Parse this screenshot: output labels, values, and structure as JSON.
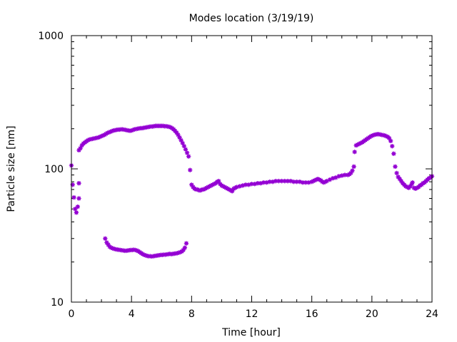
{
  "chart_data": {
    "type": "scatter",
    "title": "Modes location (3/19/19)",
    "xlabel": "Time [hour]",
    "ylabel": "Particle size [nm]",
    "xlim": [
      0,
      24
    ],
    "ylim": [
      10,
      1000
    ],
    "yscale": "log",
    "grid": false,
    "legend": "none",
    "marker_color": "#9400d3",
    "xticks": [
      "0",
      "4",
      "8",
      "12",
      "16",
      "20",
      "24"
    ],
    "yticks": [
      "10",
      "100",
      "1000"
    ],
    "series": [
      {
        "points": [
          [
            0.0,
            106
          ],
          [
            0.08,
            76
          ],
          [
            0.17,
            61
          ],
          [
            0.25,
            50
          ],
          [
            0.33,
            47
          ],
          [
            0.42,
            52
          ],
          [
            0.5,
            60
          ],
          [
            0.5,
            78
          ],
          [
            0.5,
            138
          ],
          [
            0.6,
            143
          ],
          [
            0.7,
            150
          ],
          [
            0.8,
            155
          ],
          [
            0.9,
            158
          ],
          [
            1.0,
            161
          ],
          [
            1.1,
            164
          ],
          [
            1.2,
            166
          ],
          [
            1.3,
            167
          ],
          [
            1.4,
            168
          ],
          [
            1.5,
            169
          ],
          [
            1.6,
            170
          ],
          [
            1.7,
            171
          ],
          [
            1.8,
            172
          ],
          [
            1.9,
            174
          ],
          [
            2.0,
            176
          ],
          [
            2.1,
            178
          ],
          [
            2.2,
            180
          ],
          [
            2.3,
            183
          ],
          [
            2.4,
            186
          ],
          [
            2.5,
            188
          ],
          [
            2.6,
            190
          ],
          [
            2.7,
            192
          ],
          [
            2.8,
            194
          ],
          [
            2.9,
            195
          ],
          [
            3.0,
            196
          ],
          [
            3.1,
            197
          ],
          [
            3.2,
            197
          ],
          [
            3.3,
            198
          ],
          [
            3.4,
            198
          ],
          [
            3.5,
            197
          ],
          [
            3.6,
            196
          ],
          [
            3.7,
            195
          ],
          [
            3.8,
            194
          ],
          [
            3.9,
            193
          ],
          [
            4.0,
            194
          ],
          [
            4.1,
            196
          ],
          [
            4.2,
            198
          ],
          [
            4.3,
            199
          ],
          [
            4.4,
            200
          ],
          [
            4.5,
            201
          ],
          [
            4.6,
            202
          ],
          [
            4.7,
            202
          ],
          [
            4.8,
            203
          ],
          [
            4.9,
            204
          ],
          [
            5.0,
            205
          ],
          [
            5.1,
            206
          ],
          [
            5.2,
            207
          ],
          [
            5.3,
            208
          ],
          [
            5.4,
            208
          ],
          [
            5.5,
            209
          ],
          [
            5.6,
            210
          ],
          [
            5.7,
            210
          ],
          [
            5.8,
            210
          ],
          [
            5.9,
            210
          ],
          [
            6.0,
            210
          ],
          [
            6.1,
            210
          ],
          [
            6.2,
            209
          ],
          [
            6.3,
            209
          ],
          [
            6.4,
            208
          ],
          [
            6.5,
            207
          ],
          [
            6.6,
            205
          ],
          [
            6.7,
            202
          ],
          [
            6.8,
            198
          ],
          [
            6.9,
            193
          ],
          [
            7.0,
            187
          ],
          [
            7.1,
            180
          ],
          [
            7.2,
            172
          ],
          [
            7.3,
            164
          ],
          [
            7.4,
            156
          ],
          [
            7.5,
            148
          ],
          [
            7.6,
            140
          ],
          [
            7.7,
            132
          ],
          [
            7.8,
            124
          ],
          [
            7.9,
            98
          ],
          [
            8.0,
            76
          ],
          [
            8.1,
            73
          ],
          [
            8.2,
            71
          ],
          [
            8.3,
            70
          ],
          [
            8.4,
            70
          ],
          [
            8.5,
            69
          ],
          [
            8.6,
            69
          ],
          [
            8.7,
            70
          ],
          [
            8.8,
            70
          ],
          [
            8.9,
            71
          ],
          [
            9.0,
            72
          ],
          [
            9.1,
            73
          ],
          [
            9.2,
            74
          ],
          [
            9.3,
            75
          ],
          [
            9.4,
            76
          ],
          [
            9.5,
            77
          ],
          [
            9.6,
            78
          ],
          [
            9.7,
            80
          ],
          [
            9.8,
            81
          ],
          [
            9.9,
            77
          ],
          [
            10.0,
            75
          ],
          [
            10.1,
            74
          ],
          [
            10.2,
            73
          ],
          [
            10.3,
            72
          ],
          [
            10.4,
            71
          ],
          [
            10.5,
            70
          ],
          [
            10.6,
            69
          ],
          [
            10.7,
            68
          ],
          [
            10.8,
            71
          ],
          [
            10.9,
            72
          ],
          [
            11.0,
            73
          ],
          [
            11.2,
            74
          ],
          [
            11.4,
            75
          ],
          [
            11.6,
            76
          ],
          [
            11.8,
            76
          ],
          [
            12.0,
            77
          ],
          [
            12.2,
            77
          ],
          [
            12.4,
            78
          ],
          [
            12.6,
            78
          ],
          [
            12.8,
            79
          ],
          [
            13.0,
            79
          ],
          [
            13.2,
            80
          ],
          [
            13.4,
            80
          ],
          [
            13.6,
            81
          ],
          [
            13.8,
            81
          ],
          [
            14.0,
            81
          ],
          [
            14.2,
            81
          ],
          [
            14.4,
            81
          ],
          [
            14.6,
            81
          ],
          [
            14.8,
            80
          ],
          [
            15.0,
            80
          ],
          [
            15.2,
            80
          ],
          [
            15.4,
            79
          ],
          [
            15.6,
            79
          ],
          [
            15.8,
            79
          ],
          [
            16.0,
            80
          ],
          [
            16.1,
            81
          ],
          [
            16.2,
            82
          ],
          [
            16.3,
            83
          ],
          [
            16.4,
            84
          ],
          [
            16.5,
            83
          ],
          [
            16.6,
            82
          ],
          [
            16.7,
            80
          ],
          [
            16.8,
            79
          ],
          [
            16.9,
            80
          ],
          [
            17.0,
            81
          ],
          [
            17.2,
            83
          ],
          [
            17.4,
            85
          ],
          [
            17.6,
            86
          ],
          [
            17.8,
            88
          ],
          [
            18.0,
            89
          ],
          [
            18.2,
            90
          ],
          [
            18.4,
            90
          ],
          [
            18.5,
            91
          ],
          [
            18.6,
            93
          ],
          [
            18.7,
            97
          ],
          [
            18.8,
            104
          ],
          [
            18.85,
            134
          ],
          [
            18.95,
            150
          ],
          [
            19.05,
            152
          ],
          [
            19.15,
            154
          ],
          [
            19.25,
            156
          ],
          [
            19.35,
            158
          ],
          [
            19.45,
            161
          ],
          [
            19.55,
            164
          ],
          [
            19.65,
            167
          ],
          [
            19.75,
            170
          ],
          [
            19.85,
            173
          ],
          [
            19.95,
            176
          ],
          [
            20.05,
            178
          ],
          [
            20.15,
            180
          ],
          [
            20.25,
            181
          ],
          [
            20.35,
            182
          ],
          [
            20.45,
            182
          ],
          [
            20.55,
            181
          ],
          [
            20.65,
            180
          ],
          [
            20.75,
            179
          ],
          [
            20.85,
            178
          ],
          [
            20.95,
            176
          ],
          [
            21.05,
            174
          ],
          [
            21.15,
            170
          ],
          [
            21.25,
            162
          ],
          [
            21.35,
            148
          ],
          [
            21.45,
            130
          ],
          [
            21.55,
            104
          ],
          [
            21.65,
            93
          ],
          [
            21.75,
            87
          ],
          [
            21.85,
            84
          ],
          [
            21.95,
            81
          ],
          [
            22.05,
            78
          ],
          [
            22.15,
            76
          ],
          [
            22.25,
            74
          ],
          [
            22.35,
            73
          ],
          [
            22.45,
            72
          ],
          [
            22.55,
            74
          ],
          [
            22.65,
            77
          ],
          [
            22.7,
            79
          ],
          [
            22.8,
            72
          ],
          [
            22.9,
            71
          ],
          [
            23.0,
            72
          ],
          [
            23.1,
            73
          ],
          [
            23.2,
            75
          ],
          [
            23.3,
            76
          ],
          [
            23.4,
            78
          ],
          [
            23.5,
            79
          ],
          [
            23.6,
            81
          ],
          [
            23.7,
            83
          ],
          [
            23.8,
            85
          ],
          [
            23.9,
            86
          ],
          [
            24.0,
            88
          ]
        ]
      },
      {
        "points": [
          [
            2.25,
            30
          ],
          [
            2.35,
            28
          ],
          [
            2.45,
            27
          ],
          [
            2.55,
            26
          ],
          [
            2.65,
            25.6
          ],
          [
            2.75,
            25.3
          ],
          [
            2.85,
            25.1
          ],
          [
            2.95,
            24.9
          ],
          [
            3.05,
            24.8
          ],
          [
            3.15,
            24.7
          ],
          [
            3.25,
            24.6
          ],
          [
            3.35,
            24.5
          ],
          [
            3.45,
            24.4
          ],
          [
            3.55,
            24.3
          ],
          [
            3.65,
            24.3
          ],
          [
            3.75,
            24.4
          ],
          [
            3.85,
            24.5
          ],
          [
            3.95,
            24.6
          ],
          [
            4.05,
            24.6
          ],
          [
            4.15,
            24.7
          ],
          [
            4.25,
            24.6
          ],
          [
            4.35,
            24.4
          ],
          [
            4.45,
            24.1
          ],
          [
            4.55,
            23.7
          ],
          [
            4.65,
            23.3
          ],
          [
            4.75,
            22.9
          ],
          [
            4.85,
            22.6
          ],
          [
            4.95,
            22.4
          ],
          [
            5.05,
            22.2
          ],
          [
            5.15,
            22.1
          ],
          [
            5.25,
            22.1
          ],
          [
            5.35,
            22.0
          ],
          [
            5.45,
            22.1
          ],
          [
            5.55,
            22.2
          ],
          [
            5.65,
            22.3
          ],
          [
            5.75,
            22.4
          ],
          [
            5.85,
            22.5
          ],
          [
            5.95,
            22.6
          ],
          [
            6.05,
            22.6
          ],
          [
            6.15,
            22.7
          ],
          [
            6.25,
            22.7
          ],
          [
            6.35,
            22.8
          ],
          [
            6.45,
            22.9
          ],
          [
            6.55,
            23.0
          ],
          [
            6.65,
            22.9
          ],
          [
            6.75,
            23.0
          ],
          [
            6.85,
            23.1
          ],
          [
            6.95,
            23.2
          ],
          [
            7.05,
            23.3
          ],
          [
            7.15,
            23.5
          ],
          [
            7.25,
            23.7
          ],
          [
            7.35,
            24.0
          ],
          [
            7.45,
            24.6
          ],
          [
            7.55,
            25.6
          ],
          [
            7.65,
            27.6
          ]
        ]
      }
    ]
  }
}
